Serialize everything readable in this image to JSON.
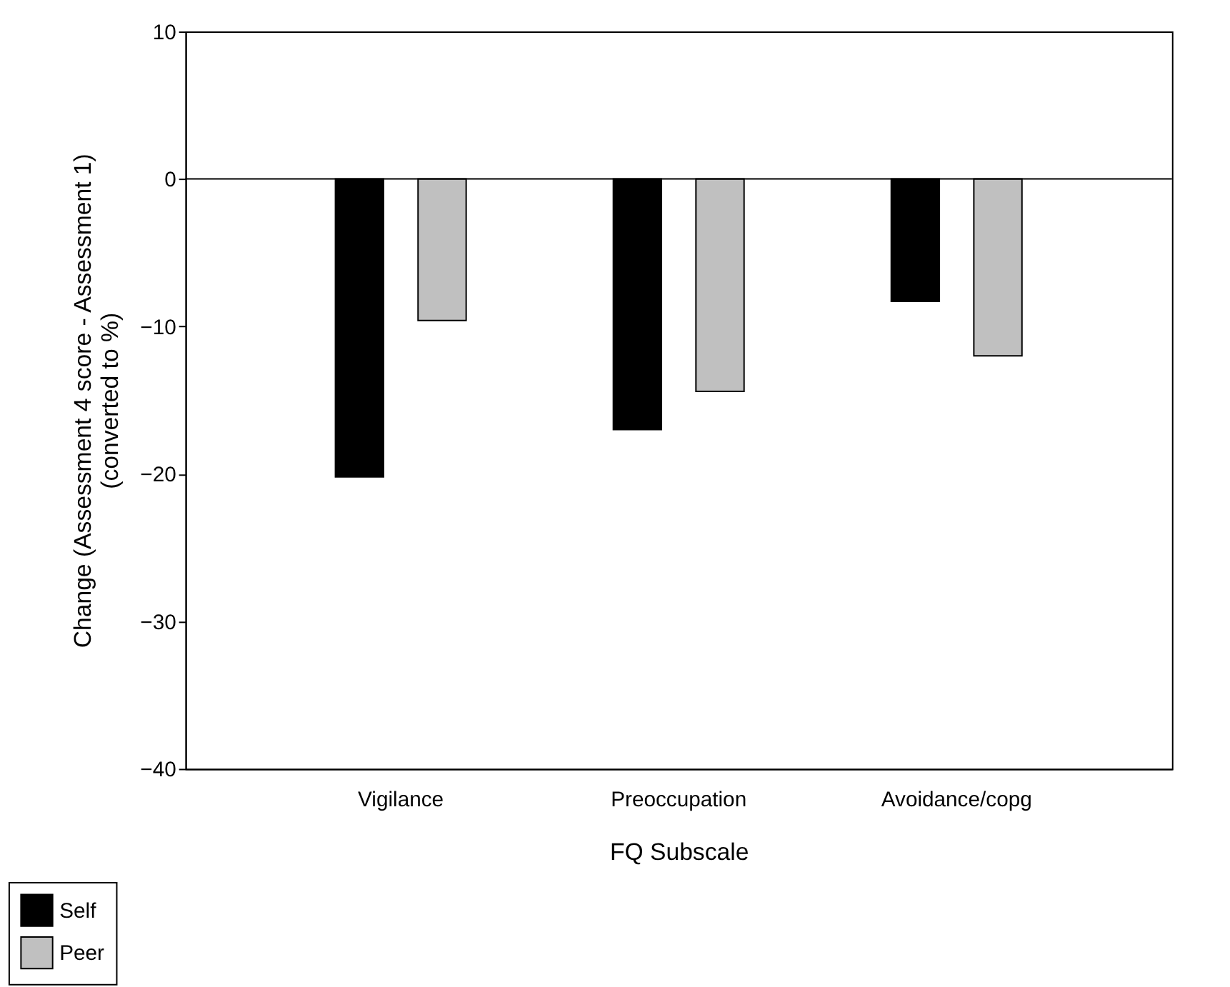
{
  "chart_data": {
    "type": "bar",
    "categories": [
      "Vigilance",
      "Preoccupation",
      "Avoidance/copg"
    ],
    "series": [
      {
        "name": "Self",
        "color": "#000000",
        "values": [
          -20.2,
          -17.0,
          -8.3
        ]
      },
      {
        "name": "Peer",
        "color": "#c0c0c0",
        "values": [
          -9.6,
          -14.4,
          -12.0
        ]
      }
    ],
    "xlabel": "FQ Subscale",
    "ylabel": "Change (Assessment 4 score - Assessment 1)\n(converted to %)",
    "ylim": [
      -40,
      10
    ],
    "yticks": [
      -40,
      -30,
      -20,
      -10,
      0,
      10
    ],
    "ref_lines": [
      {
        "axis": "y",
        "value": 0,
        "color": "#000000"
      }
    ],
    "grid": false,
    "legend": "bottom left"
  }
}
